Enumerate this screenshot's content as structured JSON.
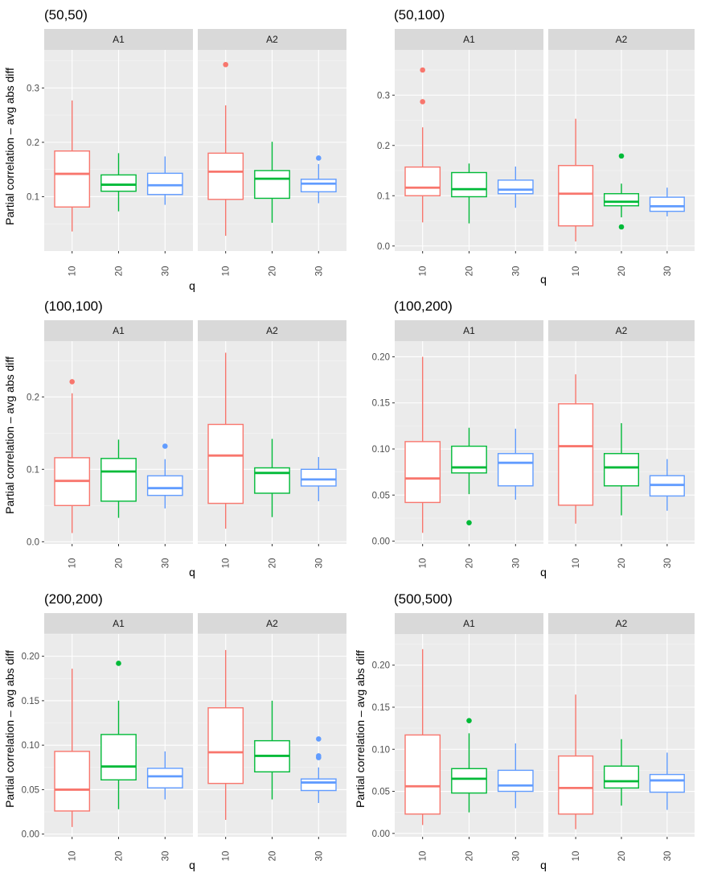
{
  "figure": {
    "y_axis_title": "Partial correlation – avg abs diff",
    "x_axis_title": "q",
    "facet_labels": [
      "A1",
      "A2"
    ],
    "q_levels": [
      "10",
      "20",
      "30"
    ],
    "colors": {
      "10": "#F8766D",
      "20": "#00BA38",
      "30": "#619CFF"
    }
  },
  "chart_data": [
    {
      "type": "boxplot",
      "title": "(50,50)",
      "xlabel": "q",
      "ylabel": "Partial correlation – avg abs diff",
      "categories": [
        "10",
        "20",
        "30"
      ],
      "ylim": [
        0.0,
        0.37
      ],
      "yticks": [
        0.1,
        0.2,
        0.3
      ],
      "ytick_labels": [
        "0.1",
        "0.2",
        "0.3"
      ],
      "facets": [
        {
          "label": "A1",
          "boxes": [
            {
              "q": "10",
              "min": 0.036,
              "q1": 0.081,
              "median": 0.142,
              "q3": 0.184,
              "max": 0.277,
              "outliers": []
            },
            {
              "q": "20",
              "min": 0.073,
              "q1": 0.11,
              "median": 0.122,
              "q3": 0.14,
              "max": 0.18,
              "outliers": []
            },
            {
              "q": "30",
              "min": 0.085,
              "q1": 0.104,
              "median": 0.121,
              "q3": 0.143,
              "max": 0.174,
              "outliers": []
            }
          ]
        },
        {
          "label": "A2",
          "boxes": [
            {
              "q": "10",
              "min": 0.028,
              "q1": 0.095,
              "median": 0.146,
              "q3": 0.18,
              "max": 0.268,
              "outliers": [
                0.343
              ]
            },
            {
              "q": "20",
              "min": 0.052,
              "q1": 0.097,
              "median": 0.133,
              "q3": 0.148,
              "max": 0.201,
              "outliers": []
            },
            {
              "q": "30",
              "min": 0.088,
              "q1": 0.109,
              "median": 0.124,
              "q3": 0.132,
              "max": 0.16,
              "outliers": [
                0.171
              ]
            }
          ]
        }
      ]
    },
    {
      "type": "boxplot",
      "title": "(50,100)",
      "xlabel": "q",
      "ylabel": "",
      "categories": [
        "10",
        "20",
        "30"
      ],
      "ylim": [
        -0.01,
        0.39
      ],
      "yticks": [
        0.0,
        0.1,
        0.2,
        0.3
      ],
      "ytick_labels": [
        "0.0",
        "0.1",
        "0.2",
        "0.3"
      ],
      "facets": [
        {
          "label": "A1",
          "boxes": [
            {
              "q": "10",
              "min": 0.047,
              "q1": 0.1,
              "median": 0.116,
              "q3": 0.157,
              "max": 0.236,
              "outliers": [
                0.287,
                0.35
              ]
            },
            {
              "q": "20",
              "min": 0.045,
              "q1": 0.098,
              "median": 0.113,
              "q3": 0.146,
              "max": 0.164,
              "outliers": []
            },
            {
              "q": "30",
              "min": 0.076,
              "q1": 0.104,
              "median": 0.112,
              "q3": 0.131,
              "max": 0.158,
              "outliers": []
            }
          ]
        },
        {
          "label": "A2",
          "boxes": [
            {
              "q": "10",
              "min": 0.009,
              "q1": 0.04,
              "median": 0.104,
              "q3": 0.16,
              "max": 0.253,
              "outliers": []
            },
            {
              "q": "20",
              "min": 0.057,
              "q1": 0.08,
              "median": 0.088,
              "q3": 0.104,
              "max": 0.124,
              "outliers": [
                0.038,
                0.179
              ]
            },
            {
              "q": "30",
              "min": 0.059,
              "q1": 0.069,
              "median": 0.079,
              "q3": 0.097,
              "max": 0.116,
              "outliers": []
            }
          ]
        }
      ]
    },
    {
      "type": "boxplot",
      "title": "(100,100)",
      "xlabel": "q",
      "ylabel": "Partial correlation – avg abs diff",
      "categories": [
        "10",
        "20",
        "30"
      ],
      "ylim": [
        -0.003,
        0.277
      ],
      "yticks": [
        0.0,
        0.1,
        0.2
      ],
      "ytick_labels": [
        "0.0",
        "0.1",
        "0.2"
      ],
      "facets": [
        {
          "label": "A1",
          "boxes": [
            {
              "q": "10",
              "min": 0.012,
              "q1": 0.05,
              "median": 0.084,
              "q3": 0.116,
              "max": 0.205,
              "outliers": [
                0.221
              ]
            },
            {
              "q": "20",
              "min": 0.033,
              "q1": 0.056,
              "median": 0.097,
              "q3": 0.115,
              "max": 0.141,
              "outliers": []
            },
            {
              "q": "30",
              "min": 0.046,
              "q1": 0.064,
              "median": 0.074,
              "q3": 0.091,
              "max": 0.114,
              "outliers": [
                0.132
              ]
            }
          ]
        },
        {
          "label": "A2",
          "boxes": [
            {
              "q": "10",
              "min": 0.018,
              "q1": 0.053,
              "median": 0.119,
              "q3": 0.162,
              "max": 0.261,
              "outliers": []
            },
            {
              "q": "20",
              "min": 0.034,
              "q1": 0.067,
              "median": 0.095,
              "q3": 0.102,
              "max": 0.142,
              "outliers": []
            },
            {
              "q": "30",
              "min": 0.056,
              "q1": 0.077,
              "median": 0.086,
              "q3": 0.1,
              "max": 0.117,
              "outliers": []
            }
          ]
        }
      ]
    },
    {
      "type": "boxplot",
      "title": "(100,200)",
      "xlabel": "q",
      "ylabel": "",
      "categories": [
        "10",
        "20",
        "30"
      ],
      "ylim": [
        -0.003,
        0.217
      ],
      "yticks": [
        0.0,
        0.05,
        0.1,
        0.15,
        0.2
      ],
      "ytick_labels": [
        "0.00",
        "0.05",
        "0.10",
        "0.15",
        "0.20"
      ],
      "facets": [
        {
          "label": "A1",
          "boxes": [
            {
              "q": "10",
              "min": 0.009,
              "q1": 0.042,
              "median": 0.068,
              "q3": 0.108,
              "max": 0.2,
              "outliers": []
            },
            {
              "q": "20",
              "min": 0.051,
              "q1": 0.074,
              "median": 0.08,
              "q3": 0.103,
              "max": 0.123,
              "outliers": [
                0.02
              ]
            },
            {
              "q": "30",
              "min": 0.045,
              "q1": 0.06,
              "median": 0.085,
              "q3": 0.095,
              "max": 0.122,
              "outliers": []
            }
          ]
        },
        {
          "label": "A2",
          "boxes": [
            {
              "q": "10",
              "min": 0.019,
              "q1": 0.039,
              "median": 0.103,
              "q3": 0.149,
              "max": 0.181,
              "outliers": []
            },
            {
              "q": "20",
              "min": 0.028,
              "q1": 0.06,
              "median": 0.08,
              "q3": 0.095,
              "max": 0.128,
              "outliers": []
            },
            {
              "q": "30",
              "min": 0.033,
              "q1": 0.049,
              "median": 0.061,
              "q3": 0.071,
              "max": 0.089,
              "outliers": []
            }
          ]
        }
      ]
    },
    {
      "type": "boxplot",
      "title": "(200,200)",
      "xlabel": "q",
      "ylabel": "Partial correlation – avg abs diff",
      "categories": [
        "10",
        "20",
        "30"
      ],
      "ylim": [
        -0.003,
        0.225
      ],
      "yticks": [
        0.0,
        0.05,
        0.1,
        0.15,
        0.2
      ],
      "ytick_labels": [
        "0.00",
        "0.05",
        "0.10",
        "0.15",
        "0.20"
      ],
      "facets": [
        {
          "label": "A1",
          "boxes": [
            {
              "q": "10",
              "min": 0.008,
              "q1": 0.026,
              "median": 0.05,
              "q3": 0.093,
              "max": 0.186,
              "outliers": []
            },
            {
              "q": "20",
              "min": 0.028,
              "q1": 0.061,
              "median": 0.076,
              "q3": 0.112,
              "max": 0.15,
              "outliers": [
                0.192
              ]
            },
            {
              "q": "30",
              "min": 0.039,
              "q1": 0.052,
              "median": 0.065,
              "q3": 0.074,
              "max": 0.093,
              "outliers": []
            }
          ]
        },
        {
          "label": "A2",
          "boxes": [
            {
              "q": "10",
              "min": 0.016,
              "q1": 0.057,
              "median": 0.092,
              "q3": 0.142,
              "max": 0.207,
              "outliers": []
            },
            {
              "q": "20",
              "min": 0.039,
              "q1": 0.07,
              "median": 0.088,
              "q3": 0.105,
              "max": 0.15,
              "outliers": []
            },
            {
              "q": "30",
              "min": 0.035,
              "q1": 0.049,
              "median": 0.058,
              "q3": 0.062,
              "max": 0.075,
              "outliers": [
                0.086,
                0.088,
                0.107
              ]
            }
          ]
        }
      ]
    },
    {
      "type": "boxplot",
      "title": "(500,500)",
      "xlabel": "q",
      "ylabel": "Partial correlation – avg abs diff",
      "categories": [
        "10",
        "20",
        "30"
      ],
      "ylim": [
        -0.004,
        0.237
      ],
      "yticks": [
        0.0,
        0.05,
        0.1,
        0.15,
        0.2
      ],
      "ytick_labels": [
        "0.00",
        "0.05",
        "0.10",
        "0.15",
        "0.20"
      ],
      "facets": [
        {
          "label": "A1",
          "boxes": [
            {
              "q": "10",
              "min": 0.01,
              "q1": 0.023,
              "median": 0.056,
              "q3": 0.117,
              "max": 0.219,
              "outliers": []
            },
            {
              "q": "20",
              "min": 0.025,
              "q1": 0.048,
              "median": 0.065,
              "q3": 0.077,
              "max": 0.119,
              "outliers": [
                0.134
              ]
            },
            {
              "q": "30",
              "min": 0.03,
              "q1": 0.05,
              "median": 0.057,
              "q3": 0.075,
              "max": 0.107,
              "outliers": []
            }
          ]
        },
        {
          "label": "A2",
          "boxes": [
            {
              "q": "10",
              "min": 0.005,
              "q1": 0.023,
              "median": 0.054,
              "q3": 0.092,
              "max": 0.165,
              "outliers": []
            },
            {
              "q": "20",
              "min": 0.033,
              "q1": 0.054,
              "median": 0.062,
              "q3": 0.08,
              "max": 0.112,
              "outliers": []
            },
            {
              "q": "30",
              "min": 0.028,
              "q1": 0.049,
              "median": 0.063,
              "q3": 0.07,
              "max": 0.096,
              "outliers": []
            }
          ]
        }
      ]
    }
  ]
}
